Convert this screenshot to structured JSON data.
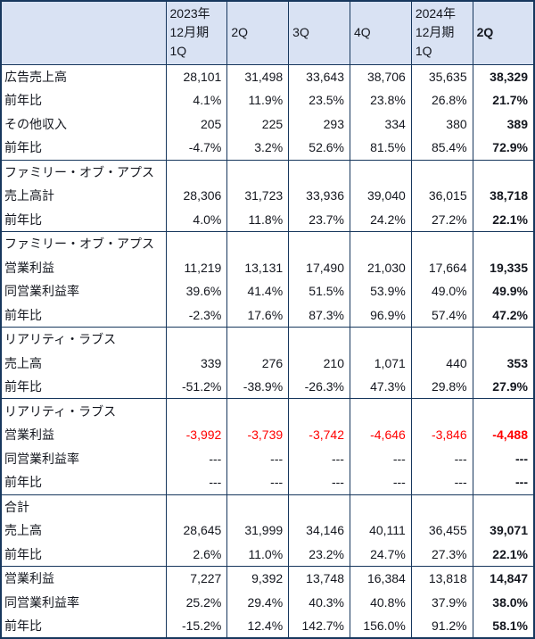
{
  "style": {
    "border_color": "#17375d",
    "header_bg": "#d9e2f3",
    "text_color": "#14171f",
    "negative_color": "#ff0000"
  },
  "chart_data": {
    "type": "table",
    "header": [
      {
        "lines": [
          "2023年",
          "12月期",
          "1Q"
        ],
        "bold": false
      },
      {
        "lines": [
          "2Q"
        ],
        "bold": false
      },
      {
        "lines": [
          "3Q"
        ],
        "bold": false
      },
      {
        "lines": [
          "4Q"
        ],
        "bold": false
      },
      {
        "lines": [
          "2024年",
          "12月期",
          "1Q"
        ],
        "bold": false
      },
      {
        "lines": [
          "2Q"
        ],
        "bold": true
      }
    ],
    "rows": [
      {
        "label": "広告売上高",
        "values": [
          "28,101",
          "31,498",
          "33,643",
          "38,706",
          "35,635",
          "38,329"
        ],
        "group_start": true
      },
      {
        "label": "前年比",
        "values": [
          "4.1%",
          "11.9%",
          "23.5%",
          "23.8%",
          "26.8%",
          "21.7%"
        ]
      },
      {
        "label": "その他収入",
        "values": [
          "205",
          "225",
          "293",
          "334",
          "380",
          "389"
        ]
      },
      {
        "label": "前年比",
        "values": [
          "-4.7%",
          "3.2%",
          "52.6%",
          "81.5%",
          "85.4%",
          "72.9%"
        ]
      },
      {
        "label": "ファミリー・オブ・アプス",
        "values": [
          "",
          "",
          "",
          "",
          "",
          ""
        ],
        "group_start": true
      },
      {
        "label": "売上高計",
        "values": [
          "28,306",
          "31,723",
          "33,936",
          "39,040",
          "36,015",
          "38,718"
        ]
      },
      {
        "label": "前年比",
        "values": [
          "4.0%",
          "11.8%",
          "23.7%",
          "24.2%",
          "27.2%",
          "22.1%"
        ]
      },
      {
        "label": "ファミリー・オブ・アプス",
        "values": [
          "",
          "",
          "",
          "",
          "",
          ""
        ],
        "group_start": true
      },
      {
        "label": "営業利益",
        "values": [
          "11,219",
          "13,131",
          "17,490",
          "21,030",
          "17,664",
          "19,335"
        ]
      },
      {
        "label": "同営業利益率",
        "values": [
          "39.6%",
          "41.4%",
          "51.5%",
          "53.9%",
          "49.0%",
          "49.9%"
        ]
      },
      {
        "label": "前年比",
        "values": [
          "-2.3%",
          "17.6%",
          "87.3%",
          "96.9%",
          "57.4%",
          "47.2%"
        ]
      },
      {
        "label": "リアリティ・ラブス",
        "values": [
          "",
          "",
          "",
          "",
          "",
          ""
        ],
        "group_start": true
      },
      {
        "label": "売上高",
        "values": [
          "339",
          "276",
          "210",
          "1,071",
          "440",
          "353"
        ]
      },
      {
        "label": "前年比",
        "values": [
          "-51.2%",
          "-38.9%",
          "-26.3%",
          "47.3%",
          "29.8%",
          "27.9%"
        ]
      },
      {
        "label": "リアリティ・ラブス",
        "values": [
          "",
          "",
          "",
          "",
          "",
          ""
        ],
        "group_start": true
      },
      {
        "label": "営業利益",
        "values": [
          "-3,992",
          "-3,739",
          "-3,742",
          "-4,646",
          "-3,846",
          "-4,488"
        ],
        "red": true
      },
      {
        "label": "同営業利益率",
        "values": [
          "---",
          "---",
          "---",
          "---",
          "---",
          "---"
        ]
      },
      {
        "label": "前年比",
        "values": [
          "---",
          "---",
          "---",
          "---",
          "---",
          "---"
        ]
      },
      {
        "label": "合計",
        "values": [
          "",
          "",
          "",
          "",
          "",
          ""
        ],
        "group_start": true
      },
      {
        "label": "売上高",
        "values": [
          "28,645",
          "31,999",
          "34,146",
          "40,111",
          "36,455",
          "39,071"
        ]
      },
      {
        "label": "前年比",
        "values": [
          "2.6%",
          "11.0%",
          "23.2%",
          "24.7%",
          "27.3%",
          "22.1%"
        ]
      },
      {
        "label": "営業利益",
        "values": [
          "7,227",
          "9,392",
          "13,748",
          "16,384",
          "13,818",
          "14,847"
        ],
        "group_start": true
      },
      {
        "label": "同営業利益率",
        "values": [
          "25.2%",
          "29.4%",
          "40.3%",
          "40.8%",
          "37.9%",
          "38.0%"
        ]
      },
      {
        "label": "前年比",
        "values": [
          "-15.2%",
          "12.4%",
          "142.7%",
          "156.0%",
          "91.2%",
          "58.1%"
        ]
      }
    ]
  }
}
